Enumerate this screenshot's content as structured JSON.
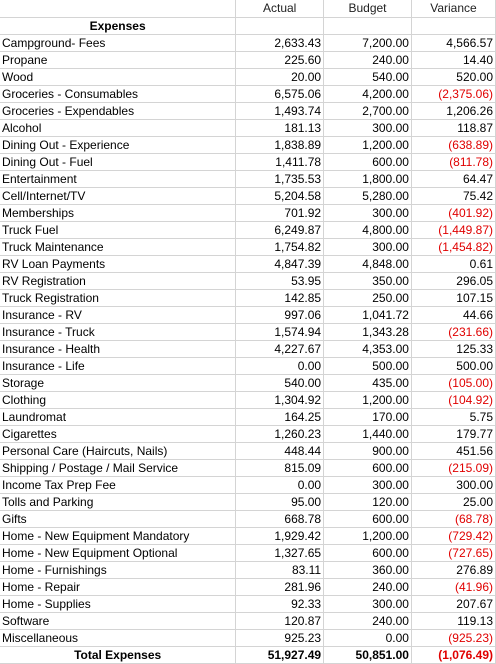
{
  "headers": {
    "actual": "Actual",
    "budget": "Budget",
    "variance": "Variance"
  },
  "section_title": "Expenses",
  "rows": [
    {
      "label": "Campground- Fees",
      "actual": "2,633.43",
      "budget": "7,200.00",
      "variance": "4,566.57",
      "neg": false
    },
    {
      "label": "Propane",
      "actual": "225.60",
      "budget": "240.00",
      "variance": "14.40",
      "neg": false
    },
    {
      "label": "Wood",
      "actual": "20.00",
      "budget": "540.00",
      "variance": "520.00",
      "neg": false
    },
    {
      "label": "Groceries - Consumables",
      "actual": "6,575.06",
      "budget": "4,200.00",
      "variance": "(2,375.06)",
      "neg": true
    },
    {
      "label": "Groceries - Expendables",
      "actual": "1,493.74",
      "budget": "2,700.00",
      "variance": "1,206.26",
      "neg": false
    },
    {
      "label": "Alcohol",
      "actual": "181.13",
      "budget": "300.00",
      "variance": "118.87",
      "neg": false
    },
    {
      "label": "Dining Out - Experience",
      "actual": "1,838.89",
      "budget": "1,200.00",
      "variance": "(638.89)",
      "neg": true
    },
    {
      "label": "Dining Out - Fuel",
      "actual": "1,411.78",
      "budget": "600.00",
      "variance": "(811.78)",
      "neg": true
    },
    {
      "label": "Entertainment",
      "actual": "1,735.53",
      "budget": "1,800.00",
      "variance": "64.47",
      "neg": false
    },
    {
      "label": "Cell/Internet/TV",
      "actual": "5,204.58",
      "budget": "5,280.00",
      "variance": "75.42",
      "neg": false
    },
    {
      "label": "Memberships",
      "actual": "701.92",
      "budget": "300.00",
      "variance": "(401.92)",
      "neg": true
    },
    {
      "label": "Truck Fuel",
      "actual": "6,249.87",
      "budget": "4,800.00",
      "variance": "(1,449.87)",
      "neg": true
    },
    {
      "label": "Truck Maintenance",
      "actual": "1,754.82",
      "budget": "300.00",
      "variance": "(1,454.82)",
      "neg": true
    },
    {
      "label": "RV Loan Payments",
      "actual": "4,847.39",
      "budget": "4,848.00",
      "variance": "0.61",
      "neg": false
    },
    {
      "label": "RV Registration",
      "actual": "53.95",
      "budget": "350.00",
      "variance": "296.05",
      "neg": false
    },
    {
      "label": "Truck Registration",
      "actual": "142.85",
      "budget": "250.00",
      "variance": "107.15",
      "neg": false
    },
    {
      "label": "Insurance - RV",
      "actual": "997.06",
      "budget": "1,041.72",
      "variance": "44.66",
      "neg": false
    },
    {
      "label": "Insurance - Truck",
      "actual": "1,574.94",
      "budget": "1,343.28",
      "variance": "(231.66)",
      "neg": true
    },
    {
      "label": "Insurance - Health",
      "actual": "4,227.67",
      "budget": "4,353.00",
      "variance": "125.33",
      "neg": false
    },
    {
      "label": "Insurance - Life",
      "actual": "0.00",
      "budget": "500.00",
      "variance": "500.00",
      "neg": false
    },
    {
      "label": "Storage",
      "actual": "540.00",
      "budget": "435.00",
      "variance": "(105.00)",
      "neg": true
    },
    {
      "label": "Clothing",
      "actual": "1,304.92",
      "budget": "1,200.00",
      "variance": "(104.92)",
      "neg": true
    },
    {
      "label": "Laundromat",
      "actual": "164.25",
      "budget": "170.00",
      "variance": "5.75",
      "neg": false
    },
    {
      "label": "Cigarettes",
      "actual": "1,260.23",
      "budget": "1,440.00",
      "variance": "179.77",
      "neg": false
    },
    {
      "label": "Personal Care (Haircuts, Nails)",
      "actual": "448.44",
      "budget": "900.00",
      "variance": "451.56",
      "neg": false
    },
    {
      "label": "Shipping / Postage / Mail Service",
      "actual": "815.09",
      "budget": "600.00",
      "variance": "(215.09)",
      "neg": true
    },
    {
      "label": "Income Tax Prep Fee",
      "actual": "0.00",
      "budget": "300.00",
      "variance": "300.00",
      "neg": false
    },
    {
      "label": "Tolls and Parking",
      "actual": "95.00",
      "budget": "120.00",
      "variance": "25.00",
      "neg": false
    },
    {
      "label": "Gifts",
      "actual": "668.78",
      "budget": "600.00",
      "variance": "(68.78)",
      "neg": true
    },
    {
      "label": "Home - New Equipment Mandatory",
      "actual": "1,929.42",
      "budget": "1,200.00",
      "variance": "(729.42)",
      "neg": true
    },
    {
      "label": "Home - New Equipment Optional",
      "actual": "1,327.65",
      "budget": "600.00",
      "variance": "(727.65)",
      "neg": true
    },
    {
      "label": "Home - Furnishings",
      "actual": "83.11",
      "budget": "360.00",
      "variance": "276.89",
      "neg": false
    },
    {
      "label": "Home - Repair",
      "actual": "281.96",
      "budget": "240.00",
      "variance": "(41.96)",
      "neg": true
    },
    {
      "label": "Home - Supplies",
      "actual": "92.33",
      "budget": "300.00",
      "variance": "207.67",
      "neg": false
    },
    {
      "label": "Software",
      "actual": "120.87",
      "budget": "240.00",
      "variance": "119.13",
      "neg": false
    },
    {
      "label": "Miscellaneous",
      "actual": "925.23",
      "budget": "0.00",
      "variance": "(925.23)",
      "neg": true
    }
  ],
  "total": {
    "label": "Total Expenses",
    "actual": "51,927.49",
    "budget": "50,851.00",
    "variance": "(1,076.49)",
    "neg": true
  },
  "colors": {
    "negative": "#e00000",
    "gridline": "#d4d4d4"
  }
}
